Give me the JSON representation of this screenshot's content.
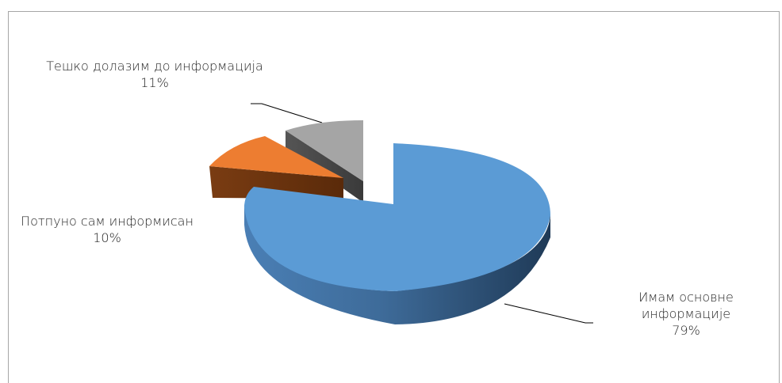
{
  "chart_data": {
    "type": "pie",
    "variant": "3d-exploded",
    "title": "",
    "slices": [
      {
        "name": "Имам основне информације",
        "value": 79,
        "label": "79%",
        "color": "#5b9bd5"
      },
      {
        "name": "Потпуно сам информисан",
        "value": 10,
        "label": "10%",
        "color": "#ed7d31"
      },
      {
        "name": "Тешко долазим до информација",
        "value": 11,
        "label": "11%",
        "color": "#a5a5a5"
      }
    ],
    "legend": "none"
  },
  "labels": {
    "slice0_line1": "Имам основне",
    "slice0_line2": "информације",
    "slice0_pct": "79%",
    "slice1_line1": "Потпуно сам информисан",
    "slice1_pct": "10%",
    "slice2_line1": "Тешко долазим до информација",
    "slice2_pct": "11%"
  }
}
